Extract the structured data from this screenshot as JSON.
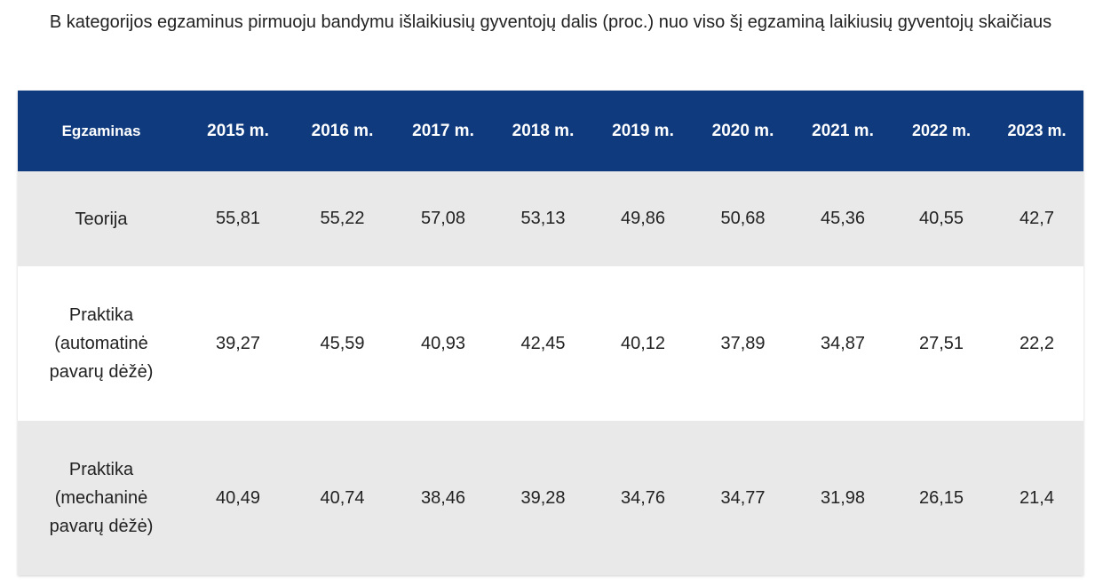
{
  "title": "B kategorijos egzaminus pirmuoju bandymu išlaikiusių gyventojų dalis (proc.) nuo viso šį egzaminą laikiusių gyventojų skaičiaus",
  "chart_data": {
    "type": "table",
    "columns": [
      "Egzaminas",
      "2015 m.",
      "2016 m.",
      "2017 m.",
      "2018 m.",
      "2019 m.",
      "2020 m.",
      "2021 m.",
      "2022 m.",
      "2023 m."
    ],
    "rows": [
      {
        "label": "Teorija",
        "values": [
          "55,81",
          "55,22",
          "57,08",
          "53,13",
          "49,86",
          "50,68",
          "45,36",
          "40,55",
          "42,7"
        ]
      },
      {
        "label": "Praktika (automatinė pavarų dėžė)",
        "values": [
          "39,27",
          "45,59",
          "40,93",
          "42,45",
          "40,12",
          "37,89",
          "34,87",
          "27,51",
          "22,2"
        ]
      },
      {
        "label": "Praktika (mechaninė pavarų dėžė)",
        "values": [
          "40,49",
          "40,74",
          "38,46",
          "39,28",
          "34,76",
          "34,77",
          "31,98",
          "26,15",
          "21,4"
        ]
      }
    ]
  },
  "colors": {
    "header_bg": "#0f3a7d",
    "header_text": "#ffffff",
    "row_alt_bg": "#e9e9e9",
    "row_bg": "#ffffff"
  }
}
